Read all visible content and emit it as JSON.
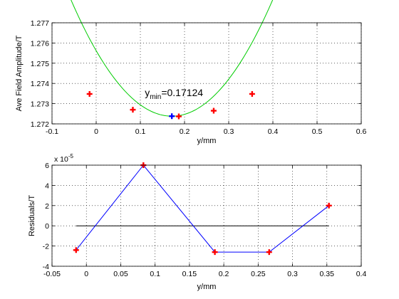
{
  "chart_data": [
    {
      "type": "scatter",
      "title": "",
      "xlabel": "y/mm",
      "ylabel": "Ave Field Amplitude/T",
      "xlim": [
        -0.1,
        0.6
      ],
      "ylim": [
        1.272,
        1.277
      ],
      "x_ticks": [
        "-0.1",
        "0",
        "0.1",
        "0.2",
        "0.3",
        "0.4",
        "0.5",
        "0.6"
      ],
      "y_ticks": [
        "1.272",
        "1.273",
        "1.274",
        "1.275",
        "1.276",
        "1.277"
      ],
      "grid": true,
      "series": [
        {
          "kind": "points",
          "color": "#ff0000",
          "marker": "plus",
          "x": [
            -0.015,
            0.083,
            0.187,
            0.266,
            0.353
          ],
          "y": [
            1.27348,
            1.2727,
            1.27237,
            1.27265,
            1.27348
          ]
        },
        {
          "kind": "fit-curve",
          "color": "#00cc00",
          "x_range": [
            -0.1,
            0.5
          ],
          "model": {
            "type": "parabola",
            "vertex_x": 0.17124,
            "vertex_y": 1.27238,
            "a": 0.1104
          }
        },
        {
          "kind": "minimum",
          "color": "#0000ff",
          "marker": "plus",
          "x": [
            0.17124
          ],
          "y": [
            1.27238
          ]
        }
      ],
      "annotation": {
        "prefix": "y",
        "subscript": "min",
        "value_text": "=0.17124",
        "x": 0.11,
        "y": 1.27338
      }
    },
    {
      "type": "line",
      "title": "",
      "xlabel": "y/mm",
      "ylabel": "Residuals/T",
      "xlim": [
        -0.05,
        0.4
      ],
      "ylim": [
        -4,
        6
      ],
      "scale_exponent_text": "x 10",
      "scale_exponent_power": "-5",
      "x_ticks": [
        "-0.05",
        "0",
        "0.05",
        "0.1",
        "0.15",
        "0.2",
        "0.25",
        "0.3",
        "0.35",
        "0.4"
      ],
      "y_ticks": [
        "-4",
        "-2",
        "0",
        "2",
        "4",
        "6"
      ],
      "grid": true,
      "zero_line": {
        "x_range": [
          -0.015,
          0.353
        ],
        "y": 0,
        "color": "#000000"
      },
      "series": [
        {
          "color": "#0000ff",
          "marker_color": "#ff0000",
          "marker": "plus",
          "x": [
            -0.015,
            0.083,
            0.187,
            0.266,
            0.353
          ],
          "y": [
            -2.4,
            6.0,
            -2.6,
            -2.6,
            2.0
          ]
        }
      ]
    }
  ]
}
